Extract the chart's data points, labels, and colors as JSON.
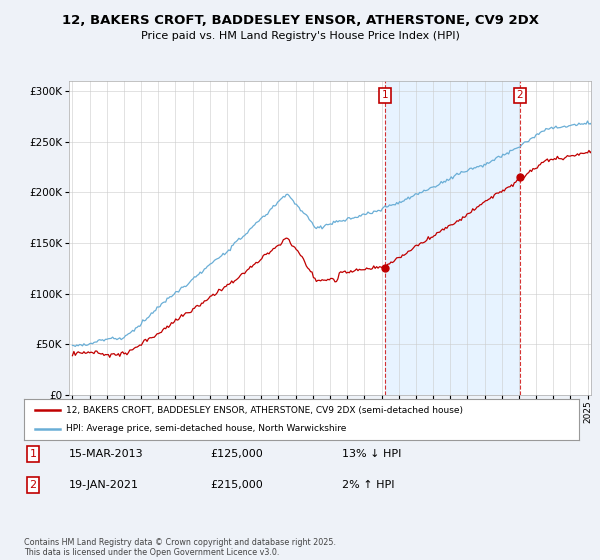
{
  "title": "12, BAKERS CROFT, BADDESLEY ENSOR, ATHERSTONE, CV9 2DX",
  "subtitle": "Price paid vs. HM Land Registry's House Price Index (HPI)",
  "legend_line1": "12, BAKERS CROFT, BADDESLEY ENSOR, ATHERSTONE, CV9 2DX (semi-detached house)",
  "legend_line2": "HPI: Average price, semi-detached house, North Warwickshire",
  "copyright": "Contains HM Land Registry data © Crown copyright and database right 2025.\nThis data is licensed under the Open Government Licence v3.0.",
  "annotation1_label": "1",
  "annotation1_date": "15-MAR-2013",
  "annotation1_price": "£125,000",
  "annotation1_hpi": "13% ↓ HPI",
  "annotation2_label": "2",
  "annotation2_date": "19-JAN-2021",
  "annotation2_price": "£215,000",
  "annotation2_hpi": "2% ↑ HPI",
  "sale1_x": 2013.21,
  "sale1_y": 125000,
  "sale2_x": 2021.05,
  "sale2_y": 215000,
  "hpi_color": "#6aaed6",
  "price_color": "#c00000",
  "background_color": "#eef2f8",
  "plot_bg_color": "#ffffff",
  "shade_color": "#ddeeff",
  "ylim": [
    0,
    310000
  ],
  "xlim": [
    1994.8,
    2025.2
  ]
}
